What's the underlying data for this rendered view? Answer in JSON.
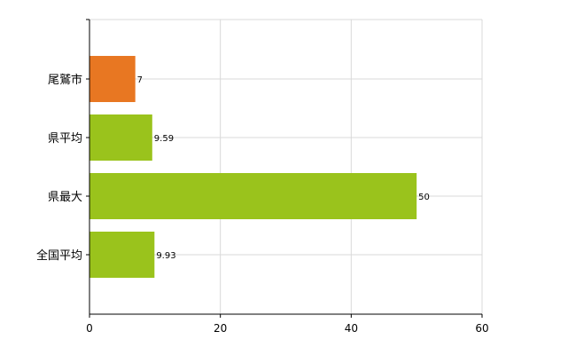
{
  "chart_data": {
    "type": "bar",
    "orientation": "horizontal",
    "categories": [
      "尾鷲市",
      "県平均",
      "県最大",
      "全国平均"
    ],
    "values": [
      7,
      9.59,
      50,
      9.93
    ],
    "value_labels": [
      "7",
      "9.59",
      "50",
      "9.93"
    ],
    "bar_colors": [
      "#e87722",
      "#9ac31c",
      "#9ac31c",
      "#9ac31c"
    ],
    "xlim": [
      0,
      60
    ],
    "xticks": [
      0,
      20,
      40,
      60
    ],
    "xtick_labels": [
      "0",
      "20",
      "40",
      "60"
    ],
    "grid": true,
    "legend": "none",
    "title": "",
    "xlabel": "",
    "ylabel": ""
  }
}
